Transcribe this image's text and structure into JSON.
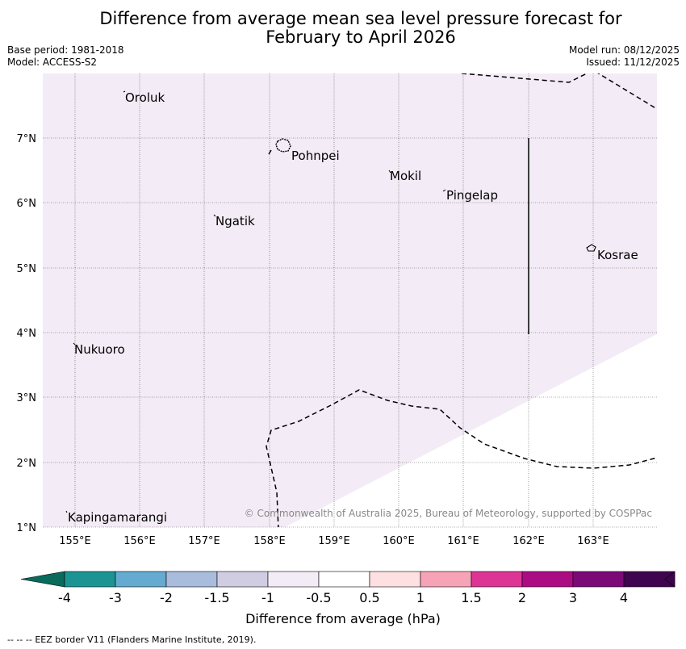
{
  "header": {
    "title_line1": "Difference from average mean sea level pressure forecast for",
    "title_line2": "February to April 2026",
    "base_period": "Base period: 1981-2018",
    "model": "Model: ACCESS-S2",
    "model_run": "Model run: 08/12/2025",
    "issued": "Issued: 11/12/2025"
  },
  "map": {
    "lon_ticks": [
      "155°E",
      "156°E",
      "157°E",
      "158°E",
      "159°E",
      "160°E",
      "161°E",
      "162°E",
      "163°E"
    ],
    "lat_ticks": [
      "7°N",
      "6°N",
      "5°N",
      "4°N",
      "3°N",
      "2°N",
      "1°N"
    ],
    "places": [
      {
        "name": "Oroluk"
      },
      {
        "name": "Pohnpei"
      },
      {
        "name": "Mokil"
      },
      {
        "name": "Pingelap"
      },
      {
        "name": "Ngatik"
      },
      {
        "name": "Kosrae"
      },
      {
        "name": "Nukuoro"
      },
      {
        "name": "Kapingamarangi"
      }
    ],
    "copyright": "© Commonwealth of Australia 2025, Bureau of Meteorology, supported by COSPPac",
    "fill_color": "#f3ebf5"
  },
  "colorbar": {
    "title": "Difference from average (hPa)",
    "labels": [
      "-4",
      "-3",
      "-2",
      "-1.5",
      "-1",
      "-0.5",
      "0.5",
      "1",
      "1.5",
      "2",
      "3",
      "4"
    ],
    "colors": [
      "#1d9494",
      "#65aad0",
      "#a9bcdc",
      "#d0cde3",
      "#f3ebf5",
      "#ffffff",
      "#fde0e1",
      "#f6a3b7",
      "#dd3596",
      "#ac0c83",
      "#7b0a78",
      "#40034f"
    ],
    "end_low_color": "#086b5c",
    "end_high_color": "#40034f"
  },
  "footer": {
    "legend_symbol": "--  --  --",
    "legend_text": "EEZ border V11 (Flanders Marine Institute, 2019)."
  }
}
